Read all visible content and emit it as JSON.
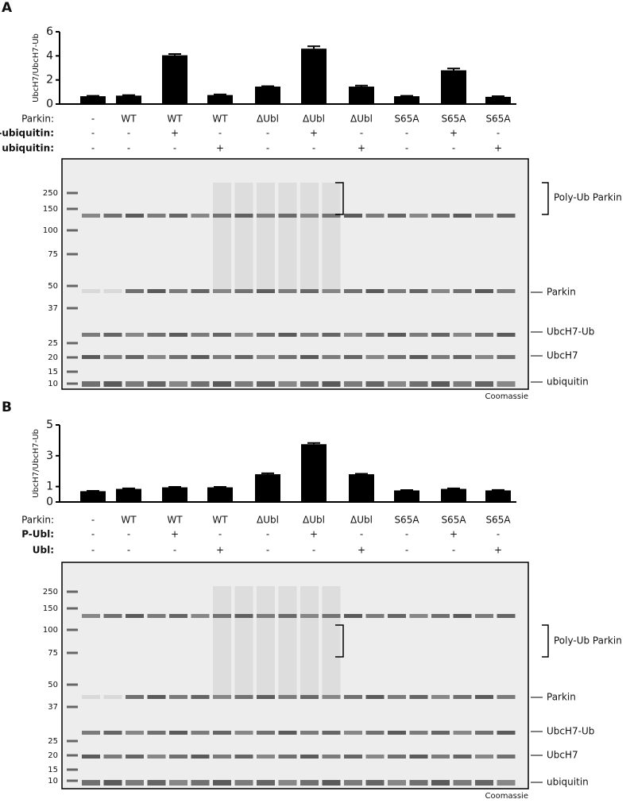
{
  "chart_data": [
    {
      "type": "bar",
      "panel_label": "A",
      "y_label": "UbcH7/UbcH7-Ub",
      "values": [
        0.65,
        0.7,
        4.05,
        0.75,
        1.45,
        4.6,
        1.45,
        0.65,
        2.8,
        0.6
      ],
      "errors": [
        0.03,
        0.04,
        0.1,
        0.05,
        0.03,
        0.2,
        0.08,
        0.03,
        0.15,
        0.05
      ],
      "color": "#000000",
      "ylim": [
        0,
        6
      ],
      "yticks": [
        0,
        2,
        4,
        6
      ],
      "conditions": [
        {
          "label": "Parkin:",
          "values": [
            "-",
            "WT",
            "WT",
            "WT",
            "ΔUbl",
            "ΔUbl",
            "ΔUbl",
            "S65A",
            "S65A",
            "S65A"
          ]
        },
        {
          "label": "P-ubiquitin:",
          "values": [
            "-",
            "-",
            "+",
            "-",
            "-",
            "+",
            "-",
            "-",
            "+",
            "-"
          ]
        },
        {
          "label": "ubiquitin:",
          "values": [
            "-",
            "-",
            "-",
            "+",
            "-",
            "-",
            "+",
            "-",
            "-",
            "+"
          ]
        }
      ]
    },
    {
      "type": "bar",
      "panel_label": "B",
      "y_label": "UbcH7/UbcH7-Ub",
      "values": [
        0.7,
        0.85,
        0.95,
        0.95,
        1.8,
        3.75,
        1.8,
        0.75,
        0.85,
        0.75
      ],
      "errors": [
        0.02,
        0.03,
        0.03,
        0.03,
        0.06,
        0.08,
        0.03,
        0.02,
        0.03,
        0.03
      ],
      "color": "#000000",
      "ylim": [
        0,
        5
      ],
      "yticks": [
        0,
        1,
        3,
        5
      ],
      "conditions": [
        {
          "label": "Parkin:",
          "values": [
            "-",
            "WT",
            "WT",
            "WT",
            "ΔUbl",
            "ΔUbl",
            "ΔUbl",
            "S65A",
            "S65A",
            "S65A"
          ]
        },
        {
          "label": "P-Ubl:",
          "values": [
            "-",
            "-",
            "+",
            "-",
            "-",
            "+",
            "-",
            "-",
            "+",
            "-"
          ]
        },
        {
          "label": "Ubl:",
          "values": [
            "-",
            "-",
            "-",
            "+",
            "-",
            "-",
            "+",
            "-",
            "-",
            "+"
          ]
        }
      ]
    }
  ],
  "gels": [
    {
      "markers": [
        "250",
        "150",
        "100",
        "75",
        "50",
        "37",
        "25",
        "20",
        "15",
        "10"
      ],
      "bands": [
        "Poly-Ub Parkin",
        "Parkin",
        "UbcH7-Ub",
        "UbcH7",
        "ubiquitin"
      ],
      "stain": "Coomassie"
    },
    {
      "markers": [
        "250",
        "150",
        "100",
        "75",
        "50",
        "37",
        "25",
        "20",
        "15",
        "10"
      ],
      "bands": [
        "Poly-Ub Parkin",
        "Parkin",
        "UbcH7-Ub",
        "UbcH7",
        "ubiquitin"
      ],
      "stain": "Coomassie"
    }
  ]
}
